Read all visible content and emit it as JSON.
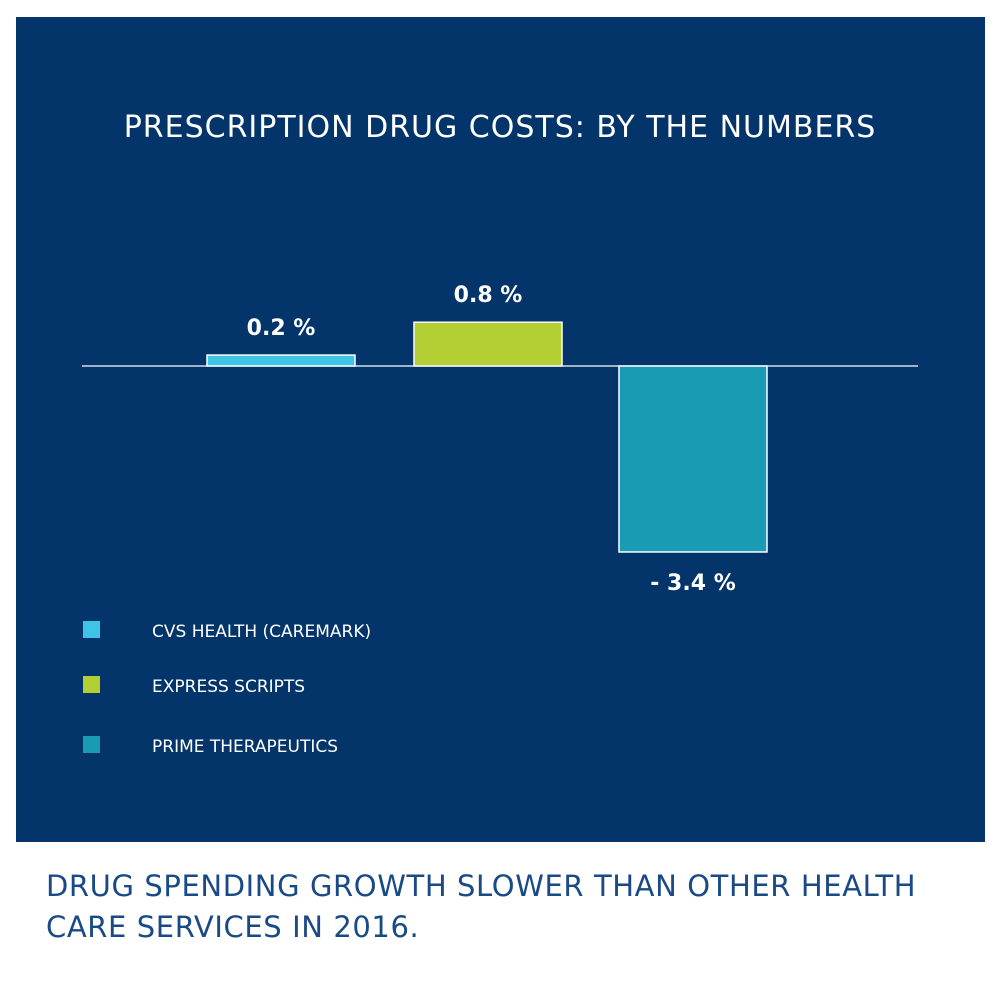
{
  "chart_data": {
    "type": "bar",
    "title": "PRESCRIPTION DRUG COSTS: BY THE NUMBERS",
    "xlabel": "",
    "ylabel": "",
    "categories": [
      "CVS HEALTH (CAREMARK)",
      "EXPRESS SCRIPTS",
      "PRIME THERAPEUTICS"
    ],
    "values": [
      0.2,
      0.8,
      -3.4
    ],
    "value_labels": [
      "0.2 %",
      "0.8 %",
      "- 3.4 %"
    ],
    "colors": [
      "#3ec4e4",
      "#b3cf33",
      "#1a9bb5"
    ],
    "ylim": [
      -3.4,
      0.8
    ],
    "grid": false,
    "legend_position": "bottom-left"
  },
  "caption": "DRUG SPENDING GROWTH SLOWER THAN OTHER HEALTH CARE SERVICES IN 2016.",
  "colors": {
    "panel_background": "#03356a",
    "text_on_panel": "#ffffff",
    "caption_text": "#1a4a86",
    "bar_outline": "#ffffff",
    "baseline": "#ffffff"
  }
}
